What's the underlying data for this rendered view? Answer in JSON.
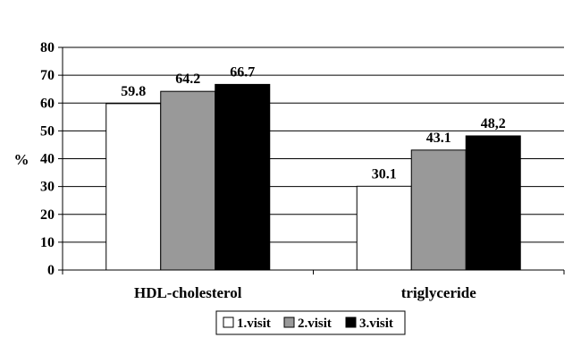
{
  "chart_data": {
    "type": "bar",
    "categories": [
      "HDL-cholesterol",
      "triglyceride"
    ],
    "series": [
      {
        "name": "1.visit",
        "values": [
          59.8,
          30.1
        ],
        "labels": [
          "59.8",
          "30.1"
        ],
        "color": "#ffffff"
      },
      {
        "name": "2.visit",
        "values": [
          64.2,
          43.1
        ],
        "labels": [
          "64.2",
          "43.1"
        ],
        "color": "#999999"
      },
      {
        "name": "3.visit",
        "values": [
          66.7,
          48.2
        ],
        "labels": [
          "66.7",
          "48,2"
        ],
        "color": "#000000"
      }
    ],
    "ylabel": "%",
    "xlabel": "",
    "ylim": [
      0,
      80
    ],
    "yticks": [
      "0",
      "10",
      "20",
      "30",
      "40",
      "50",
      "60",
      "70",
      "80"
    ],
    "grid": true,
    "legend_position": "bottom"
  }
}
